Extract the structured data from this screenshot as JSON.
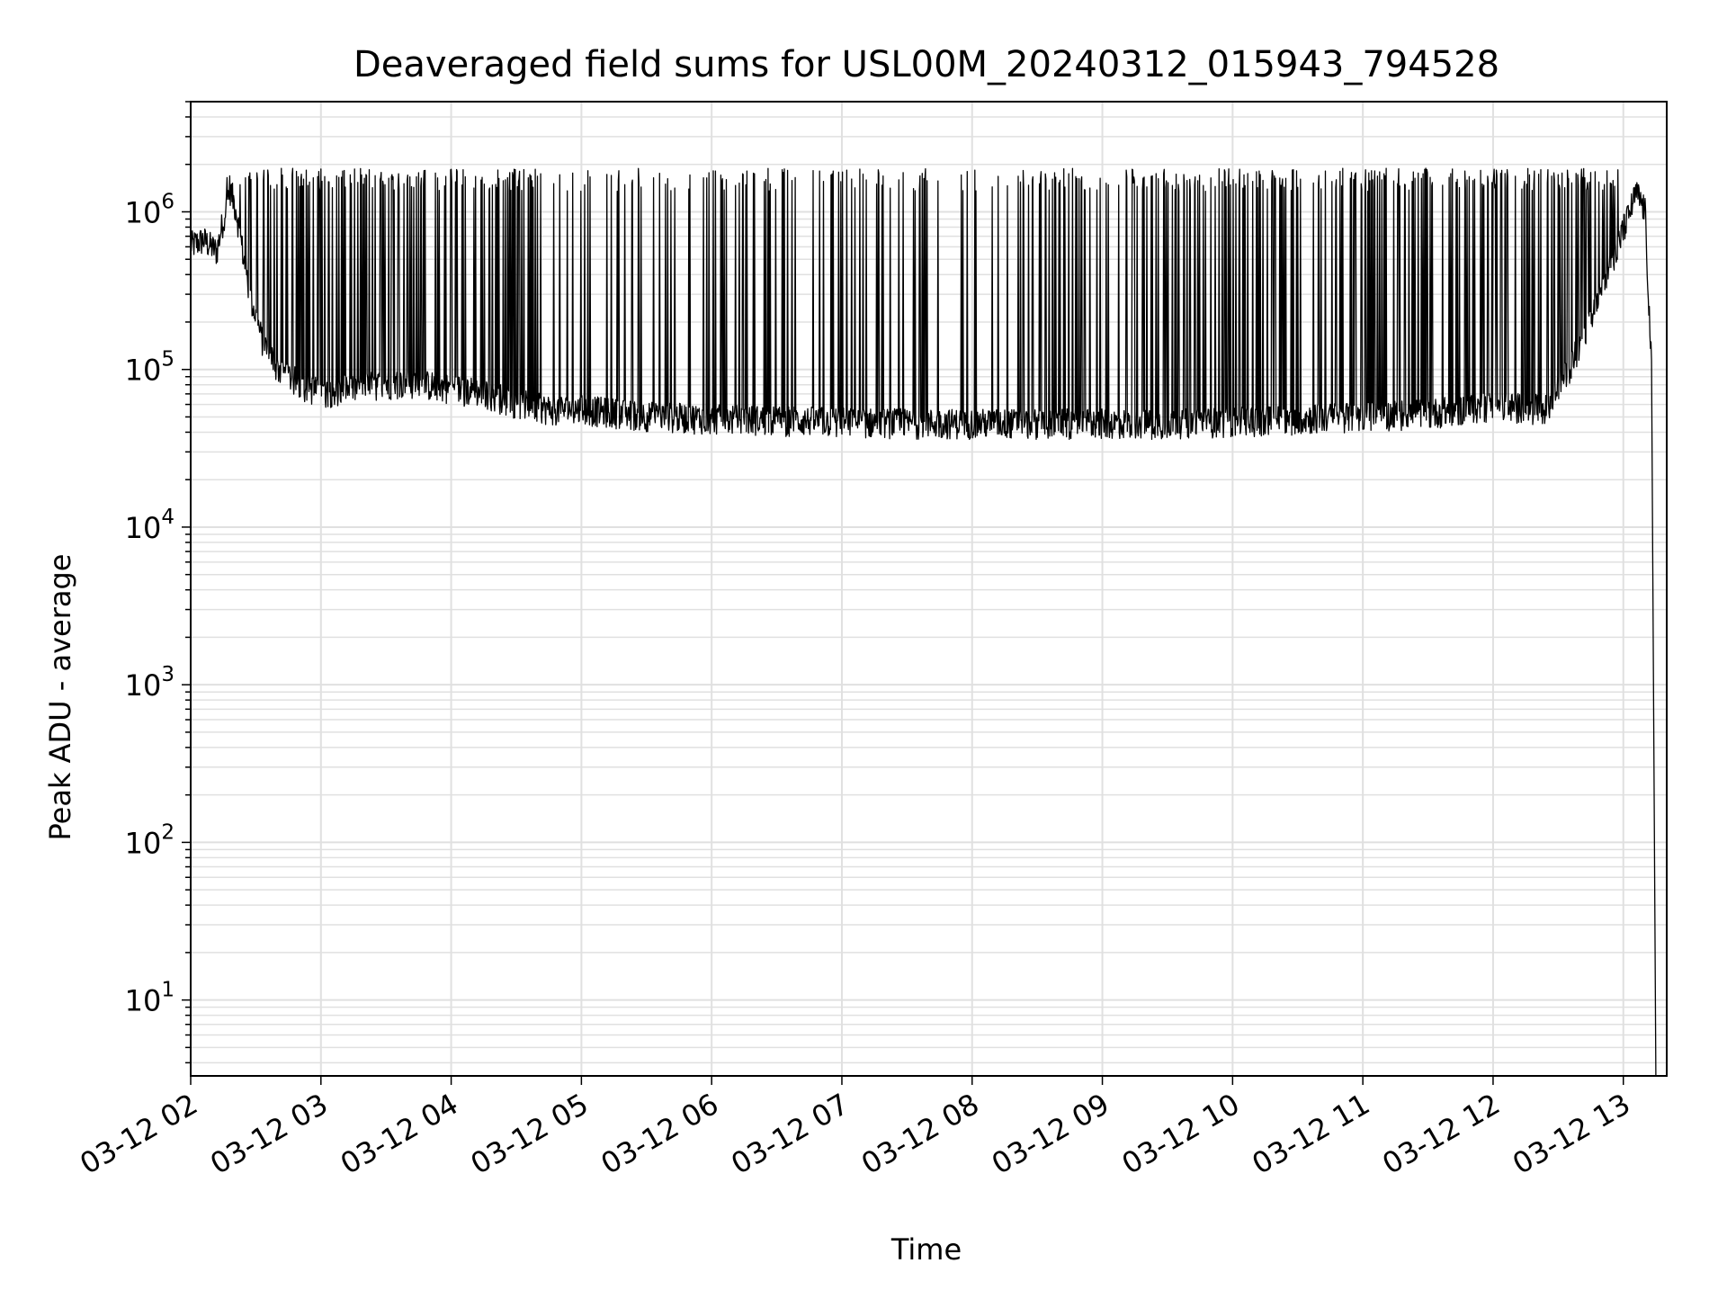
{
  "chart_data": {
    "type": "line",
    "title": "Deaveraged field sums for USL00M_20240312_015943_794528",
    "xlabel": "Time",
    "ylabel": "Peak ADU - average",
    "x_ticks": [
      "03-12 02",
      "03-12 03",
      "03-12 04",
      "03-12 05",
      "03-12 06",
      "03-12 07",
      "03-12 08",
      "03-12 09",
      "03-12 10",
      "03-12 11",
      "03-12 12",
      "03-12 13"
    ],
    "y_ticks": [
      {
        "base": "10",
        "exp": "1",
        "value": 10
      },
      {
        "base": "10",
        "exp": "2",
        "value": 100
      },
      {
        "base": "10",
        "exp": "3",
        "value": 1000
      },
      {
        "base": "10",
        "exp": "4",
        "value": 10000
      },
      {
        "base": "10",
        "exp": "5",
        "value": 100000
      },
      {
        "base": "10",
        "exp": "6",
        "value": 1000000
      }
    ],
    "xlim": [
      "2024-03-12 02:00",
      "2024-03-12 13:20"
    ],
    "ylim": [
      3.3,
      5000000
    ],
    "y_scale": "log",
    "grid": true,
    "line_color": "#000000",
    "grid_color": "#e0e0e0",
    "series": [
      {
        "x": [
          "2024-03-12 02:00",
          "2024-03-12 02:06",
          "2024-03-12 02:12",
          "2024-03-12 02:18",
          "2024-03-12 02:21",
          "2024-03-12 02:27",
          "2024-03-12 02:33",
          "2024-03-12 02:40",
          "2024-03-12 02:50",
          "2024-03-12 03:00",
          "2024-03-12 03:15",
          "2024-03-12 03:30",
          "2024-03-12 03:45",
          "2024-03-12 04:00",
          "2024-03-12 04:15",
          "2024-03-12 04:30",
          "2024-03-12 04:45",
          "2024-03-12 05:00",
          "2024-03-12 05:30",
          "2024-03-12 06:00",
          "2024-03-12 06:30",
          "2024-03-12 07:00",
          "2024-03-12 07:30",
          "2024-03-12 08:00",
          "2024-03-12 08:30",
          "2024-03-12 09:00",
          "2024-03-12 09:30",
          "2024-03-12 10:00",
          "2024-03-12 10:30",
          "2024-03-12 11:00",
          "2024-03-12 11:30",
          "2024-03-12 12:00",
          "2024-03-12 12:25",
          "2024-03-12 12:35",
          "2024-03-12 12:45",
          "2024-03-12 12:55",
          "2024-03-12 13:02",
          "2024-03-12 13:06",
          "2024-03-12 13:10",
          "2024-03-12 13:13",
          "2024-03-12 13:15"
        ],
        "y": [
          600000,
          650000,
          550000,
          1400000,
          1000000,
          300000,
          150000,
          100000,
          80000,
          70000,
          75000,
          80000,
          80000,
          75000,
          70000,
          60000,
          55000,
          55000,
          50000,
          48000,
          47000,
          46000,
          45000,
          45000,
          45000,
          45000,
          45000,
          46000,
          48000,
          50000,
          52000,
          58000,
          55000,
          100000,
          200000,
          500000,
          900000,
          1300000,
          1000000,
          100000,
          3.3
        ]
      }
    ],
    "spikes": {
      "description_range": [
        "2024-03-12 02:15",
        "2024-03-12 13:00"
      ],
      "peak_value": 1800000
    }
  }
}
